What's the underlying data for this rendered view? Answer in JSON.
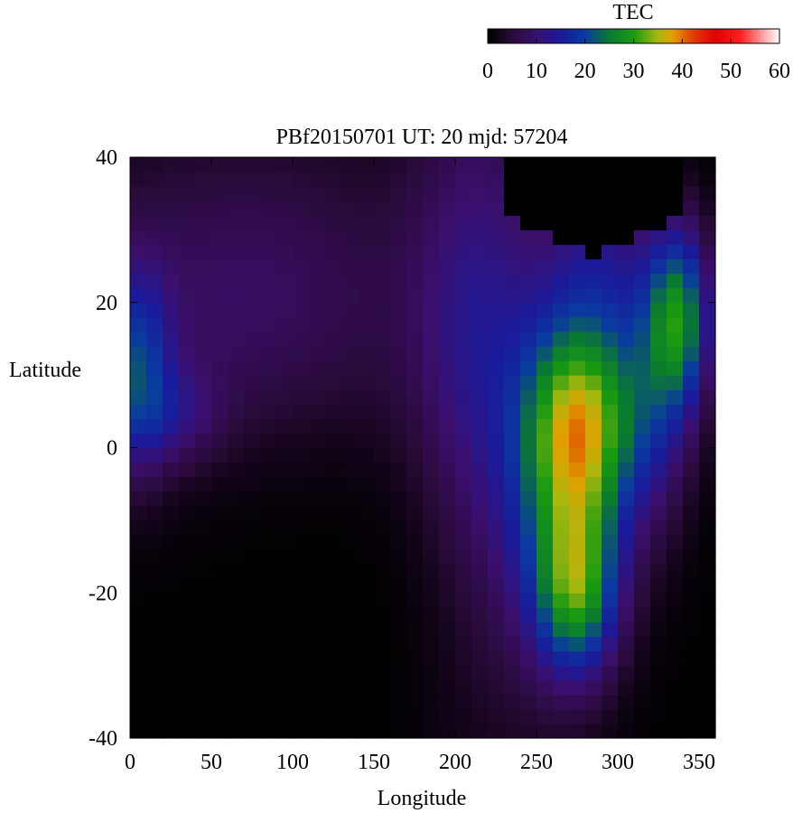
{
  "chart_data": {
    "type": "heatmap",
    "title": "PBf20150701  UT: 20  mjd: 57204",
    "xlabel": "Longitude",
    "ylabel": "Latitude",
    "xlim": [
      0,
      360
    ],
    "ylim": [
      -40,
      40
    ],
    "xticks": [
      "0",
      "50",
      "100",
      "150",
      "200",
      "250",
      "300",
      "350"
    ],
    "yticks": [
      "40",
      "20",
      "0",
      "-20",
      "-40"
    ],
    "colorbar": {
      "label": "TEC",
      "range": [
        0,
        60
      ],
      "ticks": [
        "0",
        "10",
        "20",
        "30",
        "40",
        "50",
        "60"
      ],
      "colormap": [
        [
          0,
          "#000000"
        ],
        [
          5,
          "#2a0a3a"
        ],
        [
          10,
          "#3a0f6e"
        ],
        [
          15,
          "#1a1a9a"
        ],
        [
          20,
          "#0a3aa0"
        ],
        [
          25,
          "#0a7a30"
        ],
        [
          30,
          "#1a9a10"
        ],
        [
          35,
          "#a8b810"
        ],
        [
          38,
          "#e0a000"
        ],
        [
          42,
          "#e04000"
        ],
        [
          47,
          "#e00000"
        ],
        [
          52,
          "#ff2020"
        ],
        [
          56,
          "#ff9090"
        ],
        [
          60,
          "#ffffff"
        ]
      ]
    },
    "grid": {
      "lon_step": 10,
      "lat_step": 2,
      "no_data_color": "#000000",
      "note_regions": "TEC values estimated by colour; black areas near top-right and lower-left are no-data/low TEC"
    }
  }
}
